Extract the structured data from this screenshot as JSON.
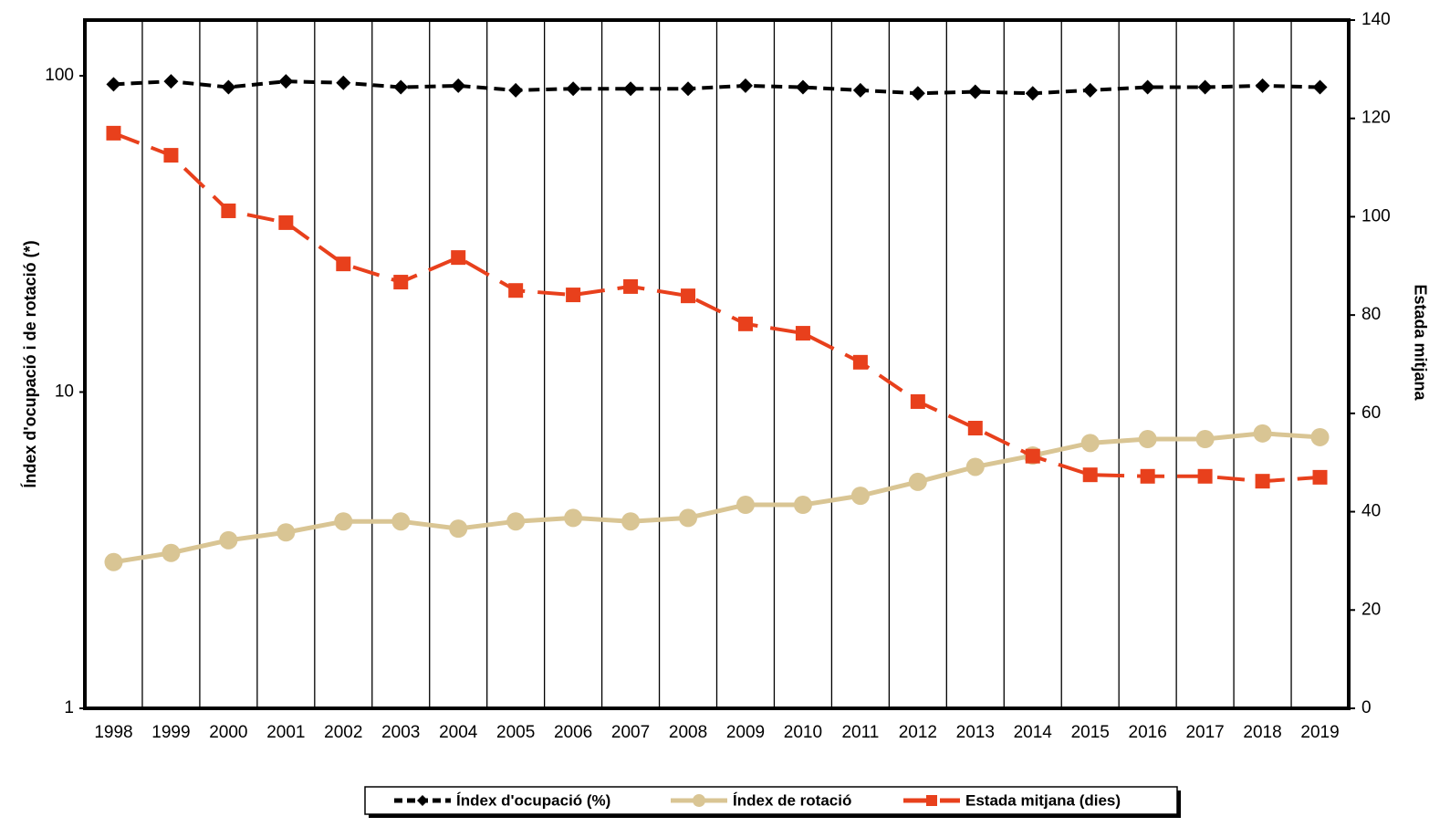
{
  "chart_data": {
    "type": "line",
    "categories": [
      "1998",
      "1999",
      "2000",
      "2001",
      "2002",
      "2003",
      "2004",
      "2005",
      "2006",
      "2007",
      "2008",
      "2009",
      "2010",
      "2011",
      "2012",
      "2013",
      "2014",
      "2015",
      "2016",
      "2017",
      "2018",
      "2019"
    ],
    "ylabel": "Índex d'ocupació i de rotació (*)",
    "y2label": "Estada mitjana",
    "ylim": [
      1,
      150
    ],
    "yticks": [
      1,
      10,
      100
    ],
    "log_y": true,
    "y2lim": [
      0,
      140
    ],
    "y2ticks": [
      0,
      20,
      40,
      60,
      80,
      100,
      120,
      140
    ],
    "grid": "x",
    "legend": "bottom",
    "series": [
      {
        "name": "Índex d'ocupació (%)",
        "color": "#000000",
        "marker": "diamond",
        "dashed": true,
        "values": [
          94,
          96,
          92,
          96,
          95,
          92,
          93,
          90,
          91,
          91,
          91,
          93,
          92,
          90,
          88,
          89,
          88,
          90,
          92,
          92,
          93,
          92
        ]
      },
      {
        "name": "Índex de rotació",
        "color": "#d9c594",
        "marker": "circle",
        "dashed": false,
        "values": [
          2.9,
          3.1,
          3.4,
          3.6,
          3.9,
          3.9,
          3.7,
          3.9,
          4.0,
          3.9,
          4.0,
          4.4,
          4.4,
          4.7,
          5.2,
          5.8,
          6.3,
          6.9,
          7.1,
          7.1,
          7.4,
          7.2
        ]
      },
      {
        "name": "Estada mitjana (dies)",
        "color": "#e8401c",
        "marker": "square",
        "dashed": true,
        "axis": "y2",
        "values": [
          117,
          112.5,
          101.2,
          98.8,
          90.4,
          86.7,
          91.7,
          85,
          84.1,
          85.8,
          83.9,
          78.2,
          76.3,
          70.4,
          62.4,
          57,
          51.3,
          47.5,
          47.2,
          47.2,
          46.2,
          47
        ]
      }
    ]
  }
}
